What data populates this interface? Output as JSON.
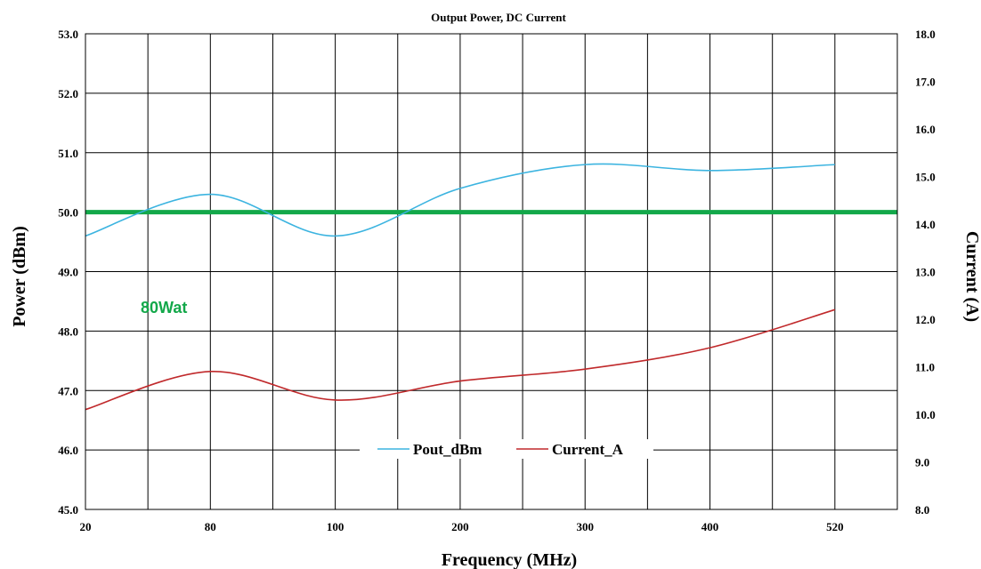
{
  "chart_data": {
    "type": "line",
    "title": "Output Power, DC Current",
    "xlabel": "Frequency (MHz)",
    "ylabel_left": "Power (dBm)",
    "ylabel_right": "Current (A)",
    "x_ticks": [
      "20",
      "80",
      "100",
      "200",
      "300",
      "400",
      "520"
    ],
    "ylim_left": [
      45.0,
      53.0
    ],
    "ylim_right": [
      8.0,
      18.0
    ],
    "yticks_left": [
      "45.0",
      "46.0",
      "47.0",
      "48.0",
      "49.0",
      "50.0",
      "51.0",
      "52.0",
      "53.0"
    ],
    "yticks_right": [
      "8.0",
      "9.0",
      "10.0",
      "11.0",
      "12.0",
      "13.0",
      "14.0",
      "15.0",
      "16.0",
      "17.0",
      "18.0"
    ],
    "grid": true,
    "legend_position": "bottom-center",
    "reference_line": {
      "value": 50.0,
      "axis": "left",
      "label": "80Wat",
      "color": "#13a84a"
    },
    "series": [
      {
        "name": "Pout_dBm",
        "axis": "left",
        "color": "#3cb4e0",
        "points": [
          {
            "x": 20,
            "y": 49.6
          },
          {
            "x": 80,
            "y": 50.3
          },
          {
            "x": 100,
            "y": 49.6
          },
          {
            "x": 200,
            "y": 50.4
          },
          {
            "x": 300,
            "y": 50.8
          },
          {
            "x": 400,
            "y": 50.7
          },
          {
            "x": 520,
            "y": 50.8
          }
        ]
      },
      {
        "name": "Current_A",
        "axis": "right",
        "color": "#c0292b",
        "points": [
          {
            "x": 20,
            "y": 10.1
          },
          {
            "x": 80,
            "y": 10.9
          },
          {
            "x": 100,
            "y": 10.3
          },
          {
            "x": 200,
            "y": 10.7
          },
          {
            "x": 300,
            "y": 10.95
          },
          {
            "x": 400,
            "y": 11.4
          },
          {
            "x": 520,
            "y": 12.2
          }
        ]
      }
    ]
  }
}
